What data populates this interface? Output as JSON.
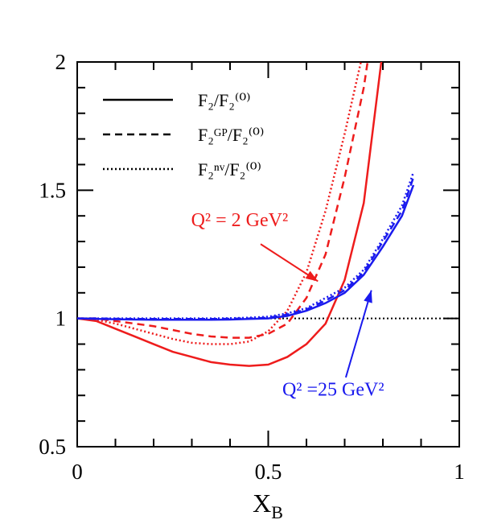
{
  "chart_data": {
    "type": "line",
    "xlabel": "X",
    "xlabel_sub": "B",
    "xlim": [
      0,
      1
    ],
    "ylim": [
      0.5,
      2
    ],
    "xticks": [
      0,
      0.5,
      1
    ],
    "yticks": [
      0.5,
      1,
      1.5,
      2
    ],
    "xminorticks": [
      0.1,
      0.2,
      0.3,
      0.4,
      0.6,
      0.7,
      0.8,
      0.9
    ],
    "yminorticks": [
      0.6,
      0.7,
      0.8,
      0.9,
      1.1,
      1.2,
      1.3,
      1.4,
      1.6,
      1.7,
      1.8,
      1.9
    ],
    "reference_line": 1,
    "legend": [
      {
        "label": "F₂/F₂⁽⁰⁾",
        "dash": "solid"
      },
      {
        "label": "F₂ᴳᴾ/F₂⁽⁰⁾",
        "dash": "dashed"
      },
      {
        "label": "F₂ⁿᵛ/F₂⁽⁰⁾",
        "dash": "dotted"
      }
    ],
    "x": [
      0,
      0.05,
      0.1,
      0.15,
      0.2,
      0.25,
      0.3,
      0.35,
      0.4,
      0.45,
      0.5,
      0.55,
      0.6,
      0.65,
      0.7,
      0.75,
      0.8,
      0.85,
      0.88
    ],
    "series": [
      {
        "color": "#ee1c1c",
        "dash": "solid",
        "values": [
          1,
          0.99,
          0.96,
          0.93,
          0.9,
          0.87,
          0.85,
          0.83,
          0.82,
          0.815,
          0.82,
          0.85,
          0.9,
          0.98,
          1.15,
          1.45,
          2.05,
          null,
          null
        ]
      },
      {
        "color": "#ee1c1c",
        "dash": "dashed",
        "values": [
          1,
          1,
          0.99,
          0.98,
          0.97,
          0.955,
          0.94,
          0.93,
          0.925,
          0.925,
          0.94,
          0.98,
          1.08,
          1.25,
          1.55,
          1.9,
          2.4,
          null,
          null
        ]
      },
      {
        "color": "#ee1c1c",
        "dash": "dotted",
        "values": [
          1,
          0.995,
          0.98,
          0.96,
          0.94,
          0.92,
          0.905,
          0.9,
          0.9,
          0.91,
          0.95,
          1.03,
          1.18,
          1.42,
          1.72,
          2.05,
          null,
          null,
          null
        ]
      },
      {
        "color": "#1a1aee",
        "dash": "solid",
        "values": [
          1,
          0.998,
          0.997,
          0.996,
          0.995,
          0.995,
          0.995,
          0.995,
          0.996,
          0.998,
          1,
          1.01,
          1.03,
          1.06,
          1.1,
          1.17,
          1.28,
          1.4,
          1.52
        ]
      },
      {
        "color": "#1a1aee",
        "dash": "dashed",
        "values": [
          1,
          1,
          0.999,
          0.998,
          0.998,
          0.998,
          0.998,
          0.998,
          0.999,
          1,
          1.003,
          1.015,
          1.035,
          1.07,
          1.11,
          1.18,
          1.3,
          1.42,
          1.55
        ]
      },
      {
        "color": "#1a1aee",
        "dash": "dotted",
        "values": [
          1,
          1,
          1,
          1,
          1,
          1,
          1,
          1,
          1.001,
          1.003,
          1.007,
          1.02,
          1.04,
          1.08,
          1.12,
          1.19,
          1.31,
          1.44,
          1.57
        ]
      }
    ],
    "annotations": [
      {
        "text": "Q² = 2 GeV²",
        "color": "#ee1c1c",
        "x": 0.425,
        "y": 1.36,
        "arrow_from": [
          0.48,
          1.29
        ],
        "arrow_to": [
          0.63,
          1.145
        ]
      },
      {
        "text": "Q² =25 GeV²",
        "color": "#1a1aee",
        "x": 0.67,
        "y": 0.7,
        "arrow_from": [
          0.703,
          0.77
        ],
        "arrow_to": [
          0.77,
          1.11
        ]
      }
    ]
  }
}
